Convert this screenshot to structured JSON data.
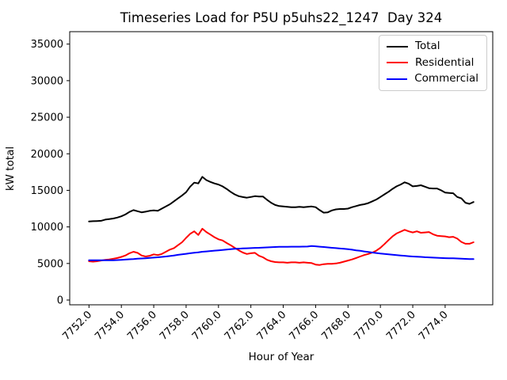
{
  "chart_data": {
    "type": "line",
    "title": "Timeseries Load for P5U p5uhs22_1247  Day 324",
    "xlabel": "Hour of Year",
    "ylabel": "kW total",
    "grid": false,
    "legend_position": "upper right",
    "xlim": [
      7750.81,
      7776.94
    ],
    "ylim": [
      -650,
      36700
    ],
    "x_ticks": [
      7752,
      7754,
      7756,
      7758,
      7760,
      7762,
      7764,
      7766,
      7768,
      7770,
      7772,
      7774
    ],
    "x_tick_labels": [
      "7752.0",
      "7754.0",
      "7756.0",
      "7758.0",
      "7760.0",
      "7762.0",
      "7764.0",
      "7766.0",
      "7768.0",
      "7770.0",
      "7772.0",
      "7774.0"
    ],
    "y_ticks": [
      0,
      5000,
      10000,
      15000,
      20000,
      25000,
      30000,
      35000
    ],
    "y_tick_labels": [
      "0",
      "5000",
      "10000",
      "15000",
      "20000",
      "25000",
      "30000",
      "35000"
    ],
    "x": [
      7752.0,
      7752.25,
      7752.5,
      7752.75,
      7753.0,
      7753.25,
      7753.5,
      7753.75,
      7754.0,
      7754.25,
      7754.5,
      7754.75,
      7755.0,
      7755.25,
      7755.5,
      7755.75,
      7756.0,
      7756.25,
      7756.5,
      7756.75,
      7757.0,
      7757.25,
      7757.5,
      7757.75,
      7758.0,
      7758.25,
      7758.5,
      7758.75,
      7759.0,
      7759.25,
      7759.5,
      7759.75,
      7760.0,
      7760.25,
      7760.5,
      7760.75,
      7761.0,
      7761.25,
      7761.5,
      7761.75,
      7762.0,
      7762.25,
      7762.5,
      7762.75,
      7763.0,
      7763.25,
      7763.5,
      7763.75,
      7764.0,
      7764.25,
      7764.5,
      7764.75,
      7765.0,
      7765.25,
      7765.5,
      7765.75,
      7766.0,
      7766.25,
      7766.5,
      7766.75,
      7767.0,
      7767.25,
      7767.5,
      7767.75,
      7768.0,
      7768.25,
      7768.5,
      7768.75,
      7769.0,
      7769.25,
      7769.5,
      7769.75,
      7770.0,
      7770.25,
      7770.5,
      7770.75,
      7771.0,
      7771.25,
      7771.5,
      7771.75,
      7772.0,
      7772.25,
      7772.5,
      7772.75,
      7773.0,
      7773.25,
      7773.5,
      7773.75,
      7774.0,
      7774.25,
      7774.5,
      7774.75,
      7775.0,
      7775.25,
      7775.5,
      7775.75
    ],
    "series": [
      {
        "name": "Total",
        "color": "#000000",
        "values": [
          10750,
          10780,
          10800,
          10840,
          11000,
          11080,
          11150,
          11280,
          11450,
          11700,
          12050,
          12300,
          12150,
          12000,
          12080,
          12200,
          12250,
          12200,
          12500,
          12800,
          13100,
          13500,
          13900,
          14300,
          14750,
          15500,
          16050,
          15950,
          16850,
          16400,
          16150,
          15950,
          15800,
          15550,
          15200,
          14800,
          14450,
          14200,
          14080,
          14000,
          14100,
          14200,
          14150,
          14150,
          13700,
          13300,
          13000,
          12850,
          12800,
          12750,
          12700,
          12700,
          12750,
          12700,
          12750,
          12800,
          12700,
          12300,
          11950,
          12000,
          12250,
          12400,
          12450,
          12450,
          12500,
          12700,
          12850,
          13000,
          13100,
          13250,
          13500,
          13750,
          14100,
          14450,
          14800,
          15200,
          15550,
          15800,
          16100,
          15900,
          15550,
          15600,
          15700,
          15500,
          15300,
          15250,
          15250,
          15000,
          14700,
          14650,
          14600,
          14100,
          13900,
          13300,
          13150,
          13400
        ]
      },
      {
        "name": "Residential",
        "color": "#ff0000",
        "values": [
          5300,
          5250,
          5300,
          5400,
          5500,
          5550,
          5650,
          5750,
          5900,
          6100,
          6400,
          6600,
          6450,
          6100,
          5950,
          6050,
          6250,
          6150,
          6300,
          6600,
          6900,
          7100,
          7500,
          7900,
          8500,
          9050,
          9400,
          8900,
          9750,
          9300,
          8950,
          8600,
          8300,
          8150,
          7800,
          7500,
          7150,
          6800,
          6500,
          6300,
          6400,
          6450,
          6050,
          5850,
          5500,
          5300,
          5200,
          5150,
          5150,
          5100,
          5150,
          5150,
          5100,
          5150,
          5100,
          5050,
          4850,
          4800,
          4900,
          4950,
          4950,
          5000,
          5100,
          5250,
          5400,
          5550,
          5750,
          5950,
          6150,
          6300,
          6500,
          6750,
          7150,
          7650,
          8200,
          8700,
          9100,
          9350,
          9600,
          9400,
          9250,
          9400,
          9200,
          9250,
          9300,
          9000,
          8800,
          8750,
          8700,
          8600,
          8650,
          8400,
          7950,
          7700,
          7700,
          7900
        ]
      },
      {
        "name": "Commercial",
        "color": "#0000ff",
        "values": [
          5450,
          5440,
          5430,
          5430,
          5430,
          5440,
          5450,
          5470,
          5500,
          5530,
          5570,
          5600,
          5650,
          5680,
          5720,
          5760,
          5800,
          5850,
          5900,
          5950,
          6020,
          6100,
          6180,
          6250,
          6320,
          6400,
          6470,
          6530,
          6600,
          6650,
          6700,
          6750,
          6800,
          6850,
          6900,
          6950,
          7000,
          7030,
          7060,
          7080,
          7100,
          7130,
          7150,
          7180,
          7200,
          7230,
          7250,
          7270,
          7280,
          7290,
          7300,
          7300,
          7300,
          7310,
          7320,
          7380,
          7350,
          7300,
          7250,
          7200,
          7150,
          7100,
          7050,
          7000,
          6950,
          6880,
          6800,
          6730,
          6650,
          6580,
          6500,
          6430,
          6350,
          6300,
          6250,
          6200,
          6150,
          6100,
          6050,
          6000,
          5950,
          5920,
          5900,
          5860,
          5830,
          5800,
          5780,
          5750,
          5730,
          5710,
          5700,
          5680,
          5650,
          5630,
          5610,
          5600
        ]
      }
    ]
  }
}
